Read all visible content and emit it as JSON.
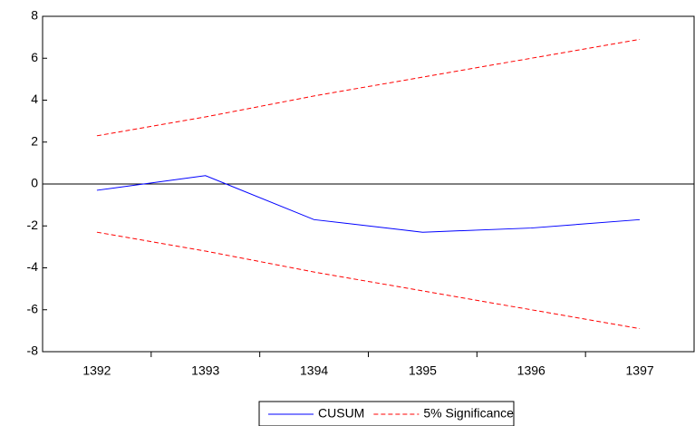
{
  "chart_data": {
    "type": "line",
    "categories": [
      "1392",
      "1393",
      "1394",
      "1395",
      "1396",
      "1397"
    ],
    "series": [
      {
        "name": "CUSUM",
        "color": "#0000ff",
        "dash": false,
        "values": [
          -0.3,
          0.4,
          -1.7,
          -2.3,
          -2.1,
          -1.7
        ]
      },
      {
        "name": "5% Significance",
        "color": "#ff0000",
        "dash": true,
        "values": [
          2.3,
          3.2,
          4.2,
          5.1,
          6.0,
          6.9
        ]
      },
      {
        "name": "5% Significance",
        "color": "#ff0000",
        "dash": true,
        "values": [
          -2.3,
          -3.2,
          -4.2,
          -5.1,
          -6.0,
          -6.9
        ]
      }
    ],
    "ylim": [
      -8,
      8
    ],
    "yticks": [
      -8,
      -6,
      -4,
      -2,
      0,
      2,
      4,
      6,
      8
    ],
    "grid": false,
    "zero_line": true,
    "legend": "bottom"
  }
}
